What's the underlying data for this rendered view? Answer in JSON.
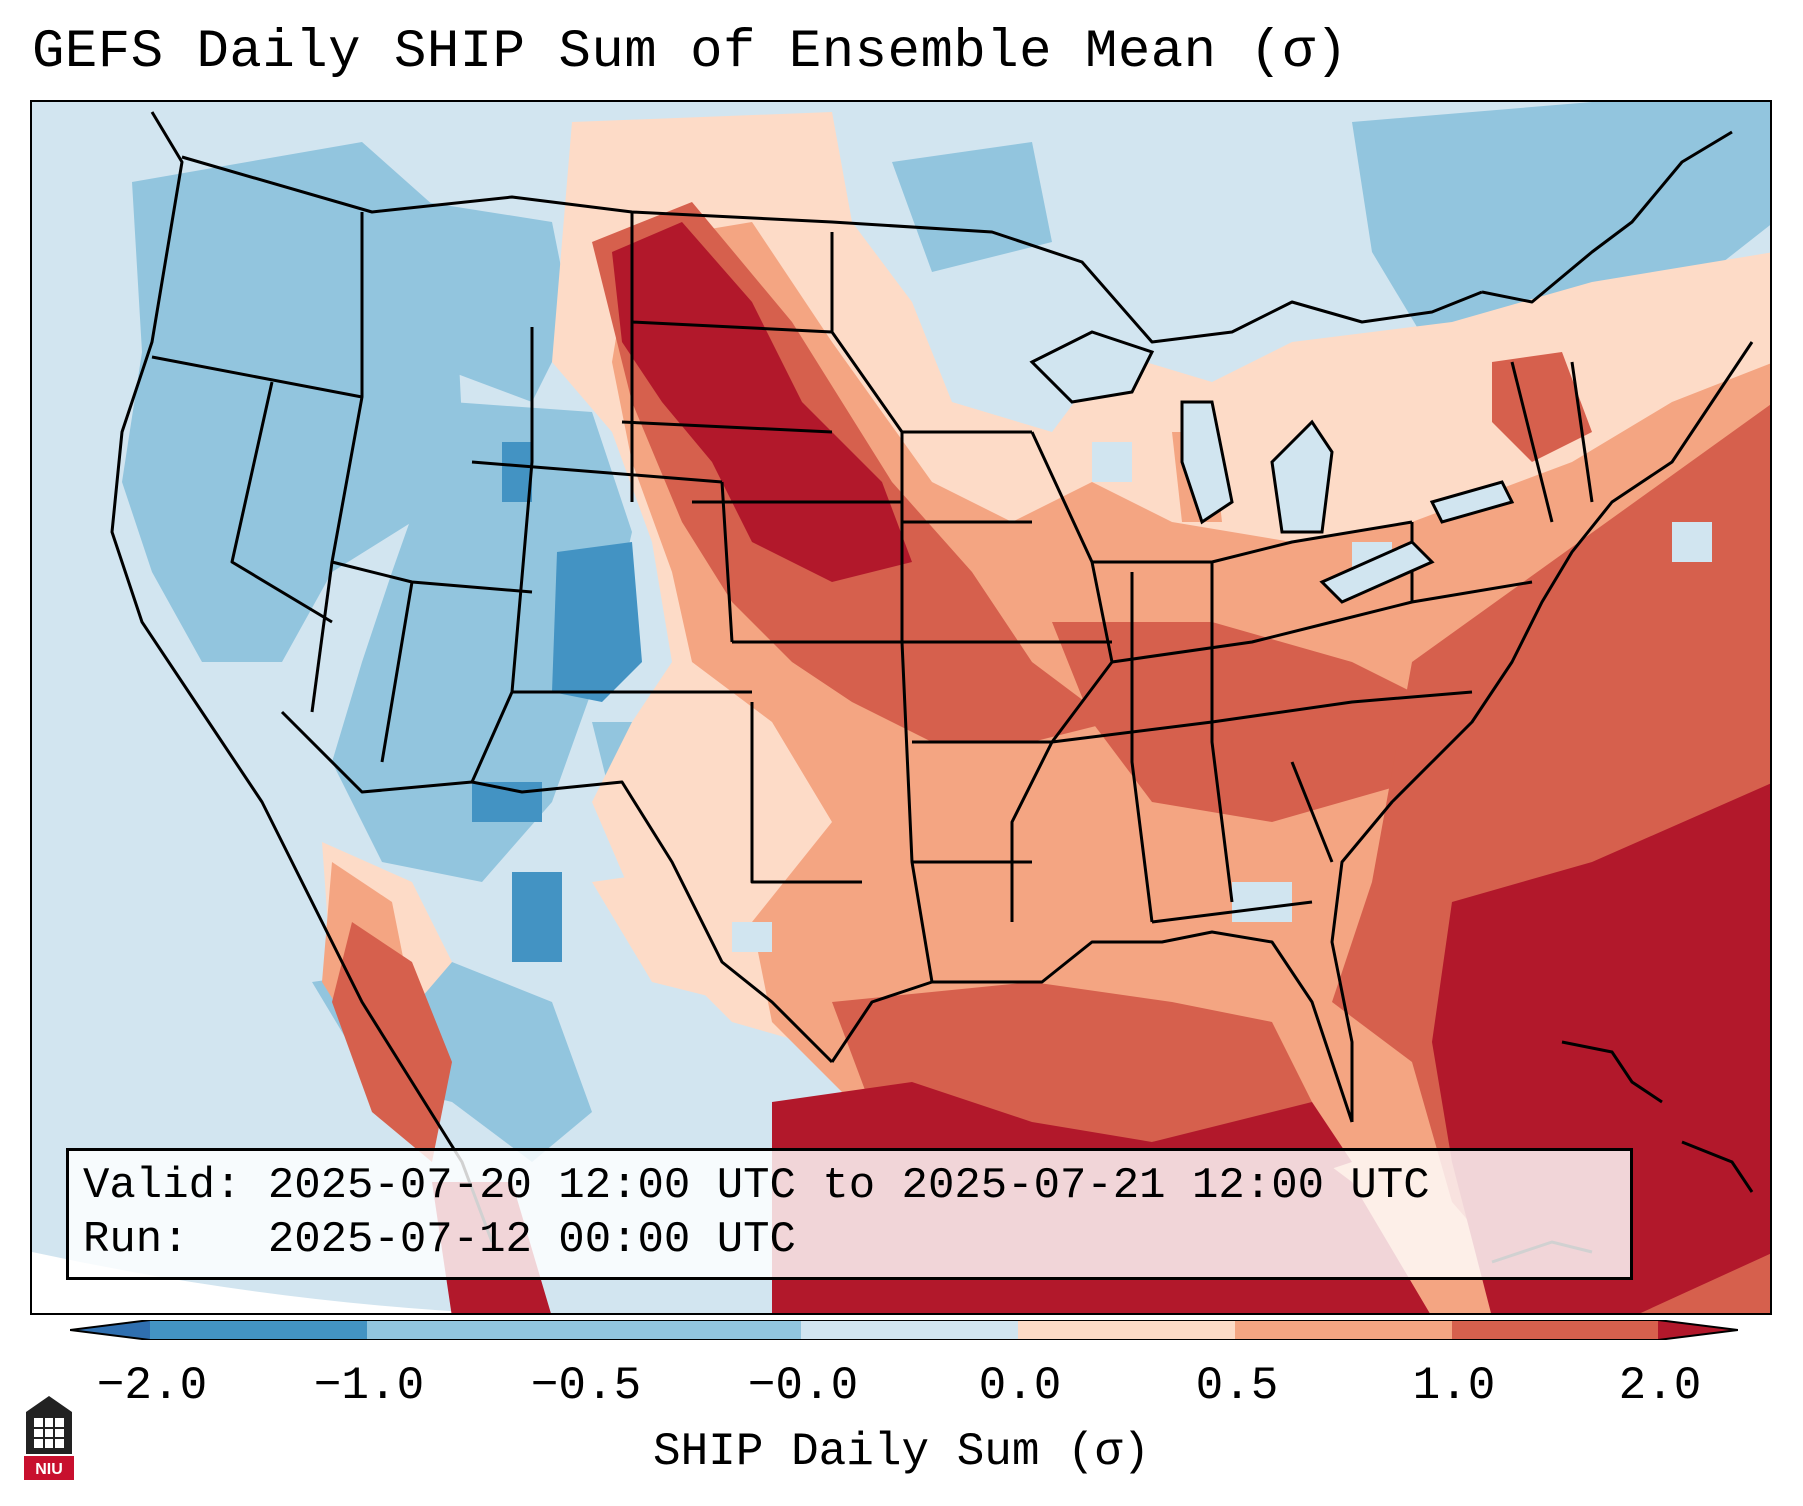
{
  "title": "GEFS Daily SHIP Sum of Ensemble Mean (σ)",
  "info": {
    "valid_label": "Valid:",
    "valid_value": "2025-07-20 12:00 UTC to 2025-07-21 12:00 UTC",
    "run_label": "Run:",
    "run_value": "2025-07-12 00:00 UTC"
  },
  "colorbar": {
    "label": "SHIP Daily Sum (σ)",
    "ticks": [
      "−2.0",
      "−1.0",
      "−0.5",
      "−0.0",
      "0.0",
      "0.5",
      "1.0",
      "2.0"
    ],
    "colors": {
      "below_min": "#2f6fb0",
      "bin_-2_-1": "#4393c3",
      "bin_-1_-0.5": "#92c5de",
      "bin_-0.5_0": "#d1e5f0",
      "bin_0_0.5": "#fddbc7",
      "bin_0.5_1": "#f4a582",
      "bin_1_2": "#d6604d",
      "above_max": "#b2182b"
    }
  },
  "map": {
    "region": "Contiguous United States",
    "variable": "SHIP daily sum anomaly",
    "pattern_summary": {
      "strong_positive": [
        "northern Plains",
        "Gulf of Mexico",
        "southeast Atlantic coast"
      ],
      "positive": [
        "Midwest",
        "Ohio Valley",
        "Tennessee Valley",
        "Northeast",
        "Mid-Atlantic"
      ],
      "negative": [
        "Pacific Northwest",
        "Great Basin",
        "Rockies",
        "Four Corners",
        "Canada"
      ]
    }
  },
  "logo": {
    "text": "NIU"
  }
}
